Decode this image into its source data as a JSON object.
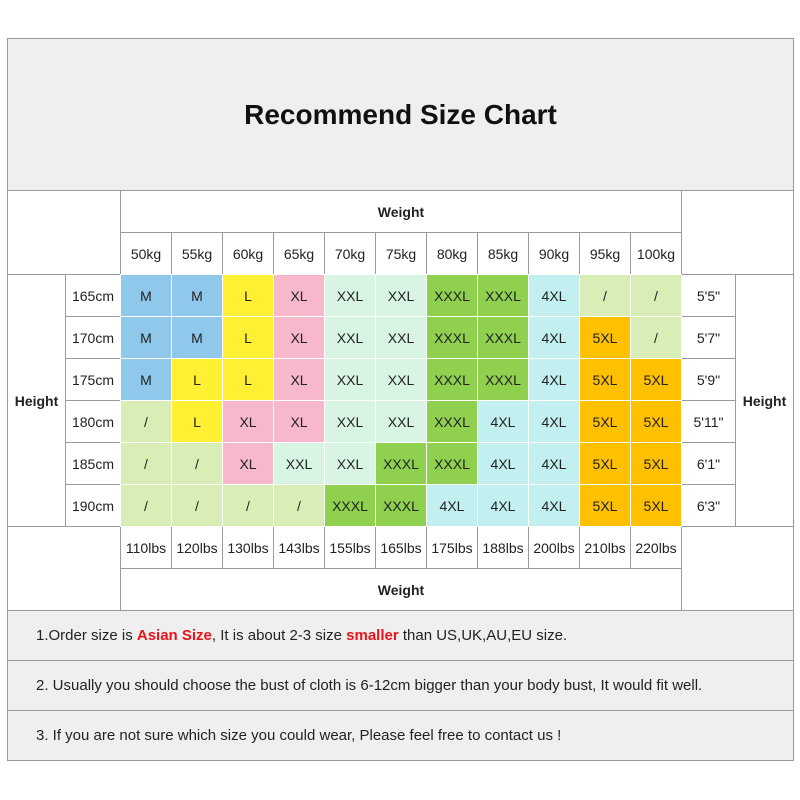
{
  "header": {
    "title": "Recommend Size Chart"
  },
  "table": {
    "weight_label": "Weight",
    "height_label": "Height",
    "weights_kg": [
      "50kg",
      "55kg",
      "60kg",
      "65kg",
      "70kg",
      "75kg",
      "80kg",
      "85kg",
      "90kg",
      "95kg",
      "100kg"
    ],
    "weights_lbs": [
      "110lbs",
      "120lbs",
      "130lbs",
      "143lbs",
      "155lbs",
      "165lbs",
      "175lbs",
      "188lbs",
      "200lbs",
      "210lbs",
      "220lbs"
    ],
    "heights_cm": [
      "165cm",
      "170cm",
      "175cm",
      "180cm",
      "185cm",
      "190cm"
    ],
    "heights_ft": [
      "5'5\"",
      "5'7\"",
      "5'9\"",
      "5'11\"",
      "6'1\"",
      "6'3\""
    ],
    "rows": [
      [
        "M",
        "M",
        "L",
        "XL",
        "XXL",
        "XXL",
        "XXXL",
        "XXXL",
        "4XL",
        "/",
        "/"
      ],
      [
        "M",
        "M",
        "L",
        "XL",
        "XXL",
        "XXL",
        "XXXL",
        "XXXL",
        "4XL",
        "5XL",
        "/"
      ],
      [
        "M",
        "L",
        "L",
        "XL",
        "XXL",
        "XXL",
        "XXXL",
        "XXXL",
        "4XL",
        "5XL",
        "5XL"
      ],
      [
        "/",
        "L",
        "XL",
        "XL",
        "XXL",
        "XXL",
        "XXXL",
        "4XL",
        "4XL",
        "5XL",
        "5XL"
      ],
      [
        "/",
        "/",
        "XL",
        "XXL",
        "XXL",
        "XXXL",
        "XXXL",
        "4XL",
        "4XL",
        "5XL",
        "5XL"
      ],
      [
        "/",
        "/",
        "/",
        "/",
        "XXXL",
        "XXXL",
        "4XL",
        "4XL",
        "4XL",
        "5XL",
        "5XL"
      ]
    ],
    "cell_colors": {
      "M": "#8fc8ea",
      "L": "#fff033",
      "XL": "#f8b8cc",
      "XXL": "#d8f5e3",
      "XXXL": "#8fd14f",
      "4XL": "#c2f0f0",
      "5XL": "#ffc000",
      "/": "#d9edb6"
    }
  },
  "notes": [
    {
      "segments": [
        {
          "text": "1.Order size is "
        },
        {
          "text": "Asian Size",
          "highlight": true
        },
        {
          "text": ", It is about 2-3 size "
        },
        {
          "text": "smaller",
          "highlight": true
        },
        {
          "text": " than US,UK,AU,EU size."
        }
      ]
    },
    {
      "segments": [
        {
          "text": "2. Usually you should choose the bust of cloth is 6-12cm bigger than your body bust, It would fit well."
        }
      ]
    },
    {
      "segments": [
        {
          "text": "3. If you are not sure which size you could wear, Please feel free to contact us !"
        }
      ]
    }
  ]
}
